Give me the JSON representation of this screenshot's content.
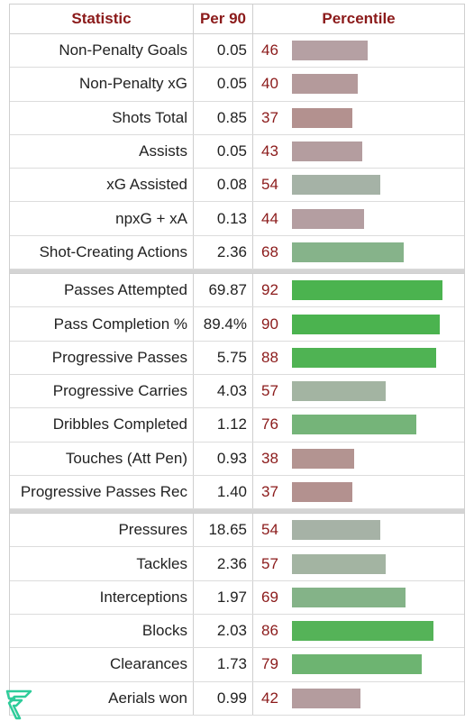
{
  "header": {
    "col_statistic": "Statistic",
    "col_per90": "Per 90",
    "col_percentile": "Percentile"
  },
  "groups": [
    {
      "rows": [
        {
          "label": "Non-Penalty Goals",
          "per90": "0.05",
          "percentile": 46,
          "color": "#b5a0a3"
        },
        {
          "label": "Non-Penalty xG",
          "per90": "0.05",
          "percentile": 40,
          "color": "#b49a9b"
        },
        {
          "label": "Shots Total",
          "per90": "0.85",
          "percentile": 37,
          "color": "#b3918f"
        },
        {
          "label": "Assists",
          "per90": "0.05",
          "percentile": 43,
          "color": "#b49d9f"
        },
        {
          "label": "xG Assisted",
          "per90": "0.08",
          "percentile": 54,
          "color": "#a5b2a6"
        },
        {
          "label": "npxG + xA",
          "per90": "0.13",
          "percentile": 44,
          "color": "#b49ea1"
        },
        {
          "label": "Shot-Creating Actions",
          "per90": "2.36",
          "percentile": 68,
          "color": "#86b38a"
        }
      ]
    },
    {
      "rows": [
        {
          "label": "Passes Attempted",
          "per90": "69.87",
          "percentile": 92,
          "color": "#4bb34f"
        },
        {
          "label": "Pass Completion %",
          "per90": "89.4%",
          "percentile": 90,
          "color": "#4bb34f"
        },
        {
          "label": "Progressive Passes",
          "per90": "5.75",
          "percentile": 88,
          "color": "#4fb353"
        },
        {
          "label": "Progressive Carries",
          "per90": "4.03",
          "percentile": 57,
          "color": "#a3b4a2"
        },
        {
          "label": "Dribbles Completed",
          "per90": "1.12",
          "percentile": 76,
          "color": "#75b479"
        },
        {
          "label": "Touches (Att Pen)",
          "per90": "0.93",
          "percentile": 38,
          "color": "#b39491"
        },
        {
          "label": "Progressive Passes Rec",
          "per90": "1.40",
          "percentile": 37,
          "color": "#b3918f"
        }
      ]
    },
    {
      "rows": [
        {
          "label": "Pressures",
          "per90": "18.65",
          "percentile": 54,
          "color": "#a6b2a6"
        },
        {
          "label": "Tackles",
          "per90": "2.36",
          "percentile": 57,
          "color": "#a3b4a2"
        },
        {
          "label": "Interceptions",
          "per90": "1.97",
          "percentile": 69,
          "color": "#84b388"
        },
        {
          "label": "Blocks",
          "per90": "2.03",
          "percentile": 86,
          "color": "#55b358"
        },
        {
          "label": "Clearances",
          "per90": "1.73",
          "percentile": 79,
          "color": "#6db471"
        },
        {
          "label": "Aerials won",
          "per90": "0.99",
          "percentile": 42,
          "color": "#b49c9e"
        }
      ]
    }
  ],
  "logo": {
    "icon": "brand-logo-icon",
    "color": "#2ecc9a"
  }
}
